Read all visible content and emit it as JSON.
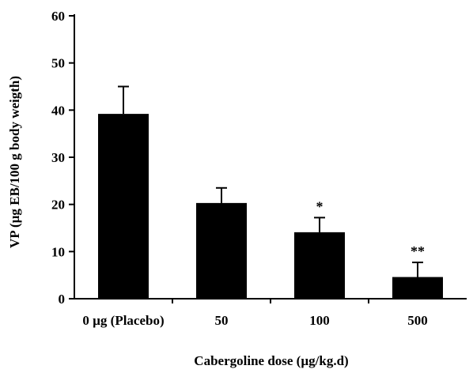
{
  "chart_data": {
    "type": "bar",
    "title": "",
    "xlabel": "Cabergoline dose (µg/kg.d)",
    "ylabel": "VP (µg EB/100 g body weigth)",
    "ylim": [
      0,
      60
    ],
    "yticks": [
      0,
      10,
      20,
      30,
      40,
      50,
      60
    ],
    "categories": [
      "0 µg (Placebo)",
      "50",
      "100",
      "500"
    ],
    "values": [
      39.2,
      20.3,
      14.1,
      4.6
    ],
    "errors": [
      5.8,
      3.2,
      3.1,
      3.1
    ],
    "significance": [
      "",
      "",
      "*",
      "**"
    ],
    "bar_color": "#000000",
    "grid": false,
    "legend": "none"
  }
}
